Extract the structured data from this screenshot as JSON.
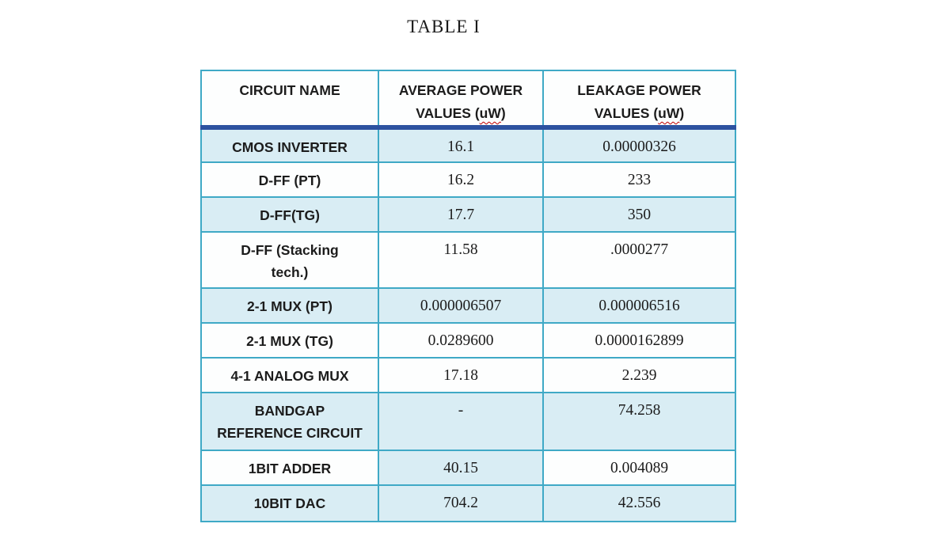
{
  "title": "TABLE I",
  "colors": {
    "border_teal": "#3fa9c6",
    "header_rule_navy": "#2d52a0",
    "row_shade_blue": "#d9edf4",
    "text": "#1c1c1c",
    "squiggle_red": "#c00000",
    "background": "#ffffff"
  },
  "table": {
    "headers": {
      "col1": {
        "line1": "CIRCUIT NAME"
      },
      "col2": {
        "line1": "AVERAGE POWER",
        "line2_prefix": "VALUES (",
        "unit": "uW",
        "line2_suffix": ")"
      },
      "col3": {
        "line1": "LEAKAGE POWER",
        "line2_prefix": "VALUES (",
        "unit": "uW",
        "line2_suffix": ")"
      }
    },
    "rows": [
      {
        "name": "CMOS INVERTER",
        "avg": "16.1",
        "leakage": "0.00000326",
        "shaded": [
          true,
          true,
          true
        ]
      },
      {
        "name": "D-FF (PT)",
        "avg": "16.2",
        "leakage": "233",
        "shaded": [
          false,
          false,
          false
        ]
      },
      {
        "name": "D-FF(TG)",
        "avg": "17.7",
        "leakage": "350",
        "shaded": [
          true,
          true,
          true
        ]
      },
      {
        "name": "D-FF (Stacking\ntech.)",
        "avg": "11.58",
        "leakage": ".0000277",
        "shaded": [
          false,
          false,
          false
        ]
      },
      {
        "name": "2-1 MUX (PT)",
        "avg": "0.000006507",
        "leakage": "0.000006516",
        "shaded": [
          true,
          true,
          true
        ]
      },
      {
        "name": "2-1 MUX (TG)",
        "avg": "0.0289600",
        "leakage": "0.0000162899",
        "shaded": [
          false,
          false,
          false
        ]
      },
      {
        "name": "4-1 ANALOG MUX",
        "avg": "17.18",
        "leakage": "2.239",
        "shaded": [
          false,
          false,
          false
        ]
      },
      {
        "name": "BANDGAP\nREFERENCE CIRCUIT",
        "avg": "-",
        "leakage": "74.258",
        "shaded": [
          true,
          true,
          true
        ]
      },
      {
        "name": "1BIT ADDER",
        "avg": "40.15",
        "leakage": "0.004089",
        "shaded": [
          false,
          true,
          false
        ]
      },
      {
        "name": "10BIT DAC",
        "avg": "704.2",
        "leakage": "42.556",
        "shaded": [
          true,
          true,
          true
        ]
      }
    ]
  }
}
